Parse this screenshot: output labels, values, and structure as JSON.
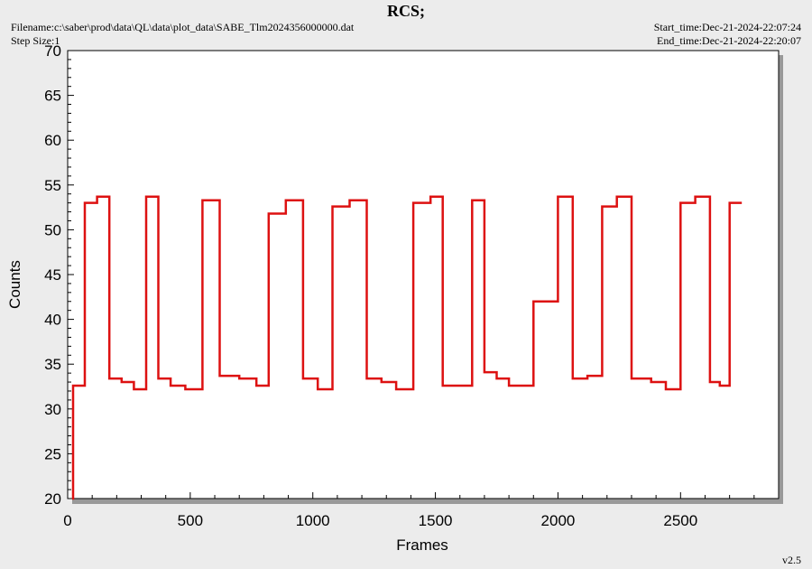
{
  "header": {
    "title": "RCS;",
    "filename": "Filename:c:\\saber\\prod\\data\\QL\\data\\plot_data\\SABE_Tlm2024356000000.dat",
    "step_size": "Step Size:1",
    "start_time": "Start_time:Dec-21-2024-22:07:24",
    "end_time": "End_time:Dec-21-2024-22:20:07"
  },
  "footer": {
    "version": "v2.5"
  },
  "colors": {
    "line": "#dd1111",
    "plot_bg": "#ffffff",
    "page_bg": "#ececec",
    "shadow": "#999999"
  },
  "chart_data": {
    "type": "line",
    "title": "",
    "xlabel": "Frames",
    "ylabel": "Counts",
    "xlim": [
      0,
      2900
    ],
    "ylim": [
      20,
      70
    ],
    "xticks": [
      0,
      500,
      1000,
      1500,
      2000,
      2500
    ],
    "yticks": [
      20,
      25,
      30,
      35,
      40,
      45,
      50,
      55,
      60,
      65,
      70
    ],
    "grid": false,
    "series": [
      {
        "name": "",
        "step": true,
        "x": [
          18,
          22,
          70,
          120,
          170,
          220,
          270,
          320,
          370,
          420,
          480,
          550,
          620,
          700,
          770,
          820,
          890,
          960,
          1020,
          1080,
          1150,
          1220,
          1280,
          1340,
          1410,
          1480,
          1530,
          1580,
          1650,
          1700,
          1750,
          1800,
          1850,
          1900,
          1940,
          2000,
          2060,
          2120,
          2180,
          2240,
          2300,
          2380,
          2440,
          2500,
          2560,
          2620,
          2660,
          2700,
          2750
        ],
        "y": [
          20,
          32.6,
          53.0,
          53.7,
          33.4,
          33.0,
          32.2,
          53.7,
          33.4,
          32.6,
          32.2,
          53.3,
          33.7,
          33.4,
          32.6,
          51.8,
          53.3,
          33.4,
          32.2,
          52.6,
          53.3,
          33.4,
          33.0,
          32.2,
          53.0,
          53.7,
          32.6,
          32.6,
          53.3,
          34.1,
          33.4,
          32.6,
          32.6,
          42.0,
          42.0,
          53.7,
          33.4,
          33.7,
          52.6,
          53.7,
          33.4,
          33.0,
          32.2,
          53.0,
          53.7,
          33.0,
          32.6,
          53.0,
          53.0
        ]
      }
    ]
  }
}
